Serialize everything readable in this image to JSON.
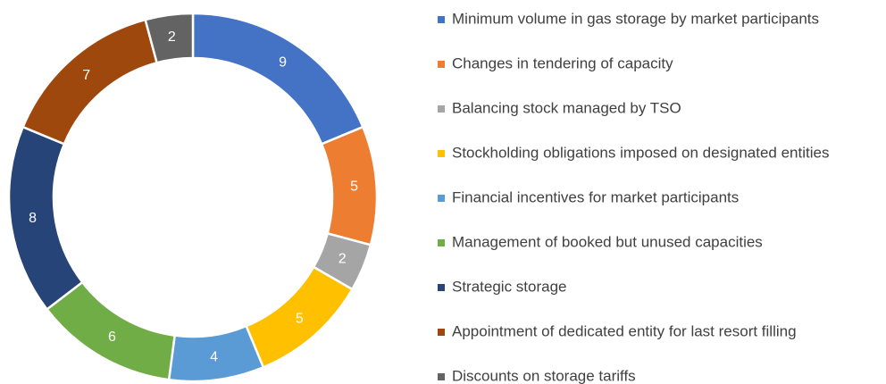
{
  "chart_data": {
    "type": "donut",
    "categories": [
      "Minimum volume in gas storage by market participants",
      "Changes in tendering of capacity",
      "Balancing stock managed by TSO",
      "Stockholding obligations imposed on designated entities",
      "Financial incentives for market participants",
      "Management of booked but unused capacities",
      "Strategic storage",
      "Appointment of dedicated entity for last resort filling",
      "Discounts on storage tariffs"
    ],
    "values": [
      9,
      5,
      2,
      5,
      4,
      6,
      8,
      7,
      2
    ],
    "colors": [
      "#4472c4",
      "#ed7d31",
      "#a5a5a5",
      "#ffc000",
      "#5b9bd5",
      "#70ad47",
      "#264478",
      "#9e480e",
      "#636363"
    ],
    "legend": "right"
  }
}
